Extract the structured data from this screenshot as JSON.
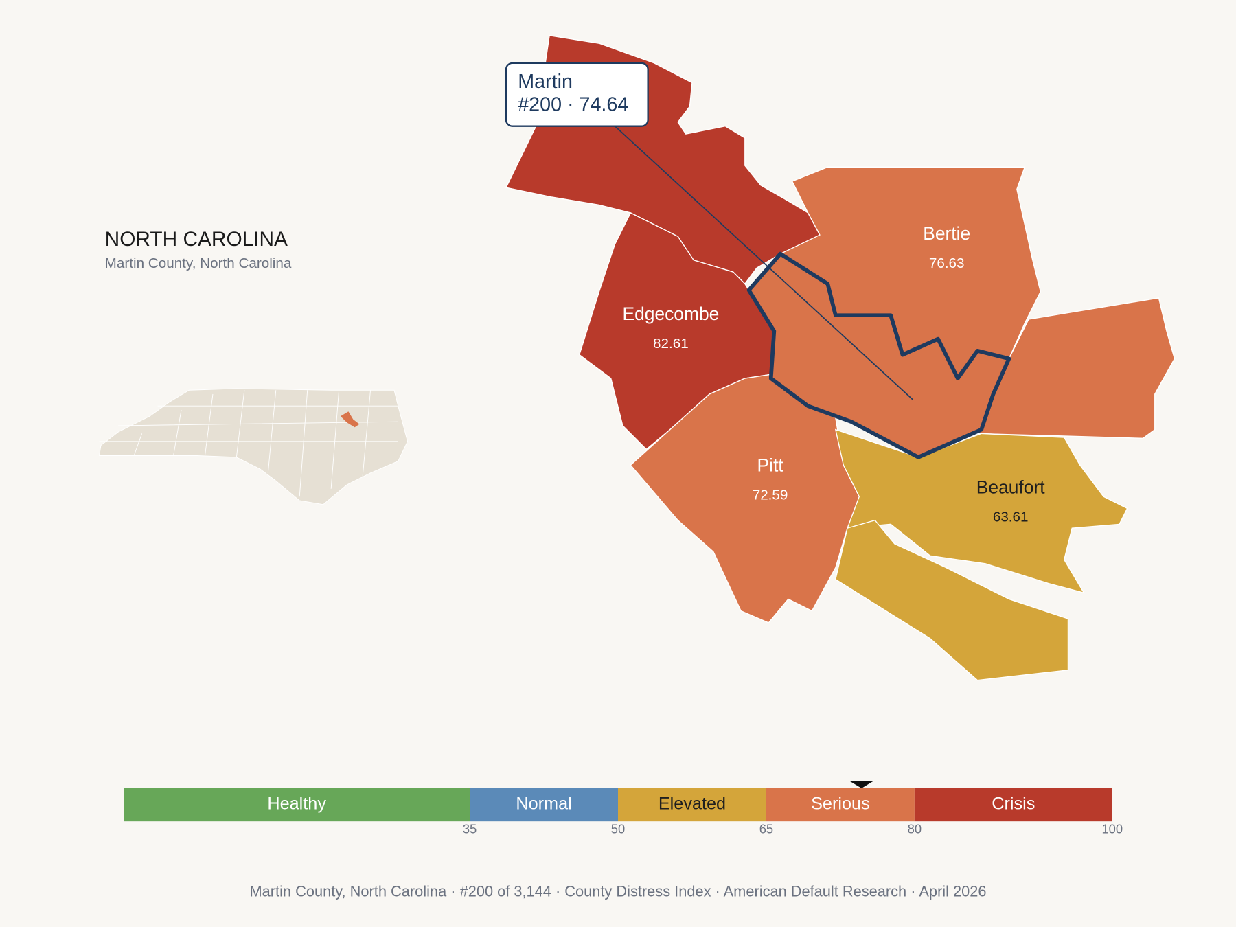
{
  "header": {
    "title": "NORTH CAROLINA",
    "subtitle": "Martin County, North Carolina"
  },
  "tooltip": {
    "name": "Martin",
    "detail": "#200 · 74.64"
  },
  "counties": [
    {
      "name": "Edgecombe",
      "score": 82.61
    },
    {
      "name": "Bertie",
      "score": 76.63
    },
    {
      "name": "Pitt",
      "score": 72.59
    },
    {
      "name": "Beaufort",
      "score": 63.61
    }
  ],
  "legend": {
    "xlim": [
      0,
      100
    ],
    "ticks": [
      35,
      50,
      65,
      80,
      100
    ],
    "marker": 74.64,
    "bands": [
      {
        "label": "Healthy",
        "color": "#67a758",
        "text_color": "#ffffff"
      },
      {
        "label": "Normal",
        "color": "#5b8ab8",
        "text_color": "#ffffff"
      },
      {
        "label": "Elevated",
        "color": "#d4a53a",
        "text_color": "#1f1f1f"
      },
      {
        "label": "Serious",
        "color": "#d9744a",
        "text_color": "#ffffff"
      },
      {
        "label": "Crisis",
        "color": "#b83a2b",
        "text_color": "#ffffff"
      }
    ]
  },
  "footer": "Martin County, North Carolina  ·  #200 of 3,144  ·  County Distress Index  ·  American Default Research  ·  April 2026"
}
